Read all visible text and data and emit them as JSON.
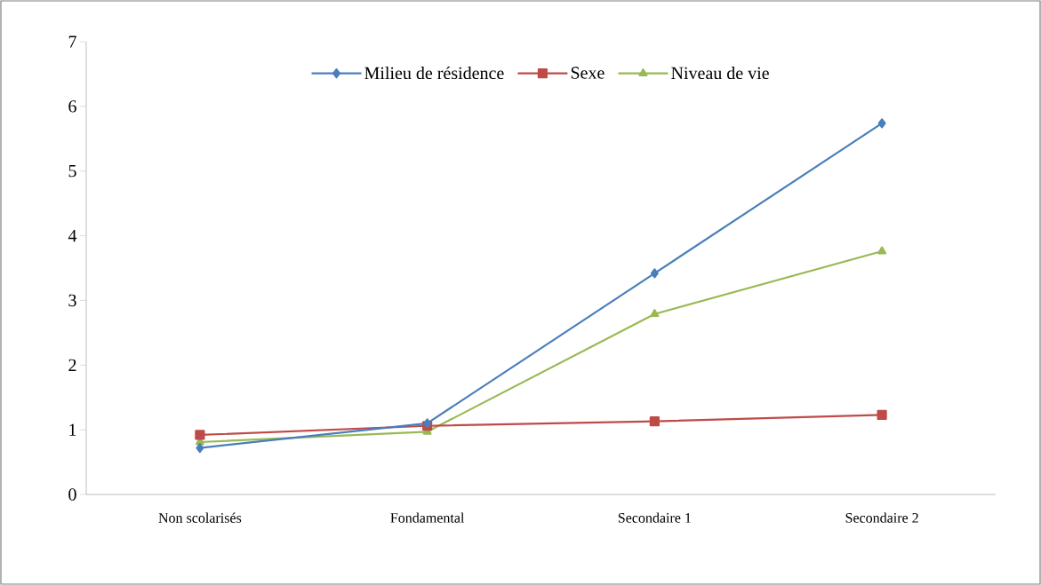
{
  "chart_data": {
    "type": "line",
    "categories": [
      "Non scolarisés",
      "Fondamental",
      "Secondaire 1",
      "Secondaire 2"
    ],
    "series": [
      {
        "name": "Milieu de résidence",
        "color": "#4a7ebb",
        "marker": "diamond",
        "values": [
          0.72,
          1.1,
          3.42,
          5.74
        ]
      },
      {
        "name": "Sexe",
        "color": "#be4b48",
        "marker": "square",
        "values": [
          0.92,
          1.06,
          1.13,
          1.23
        ]
      },
      {
        "name": "Niveau de vie",
        "color": "#98b954",
        "marker": "triangle",
        "values": [
          0.81,
          0.97,
          2.79,
          3.76
        ]
      }
    ],
    "ylim": [
      0,
      7
    ],
    "yticks": [
      0,
      1,
      2,
      3,
      4,
      5,
      6,
      7
    ],
    "grid": false,
    "legend": "top",
    "line_style": "solid"
  }
}
